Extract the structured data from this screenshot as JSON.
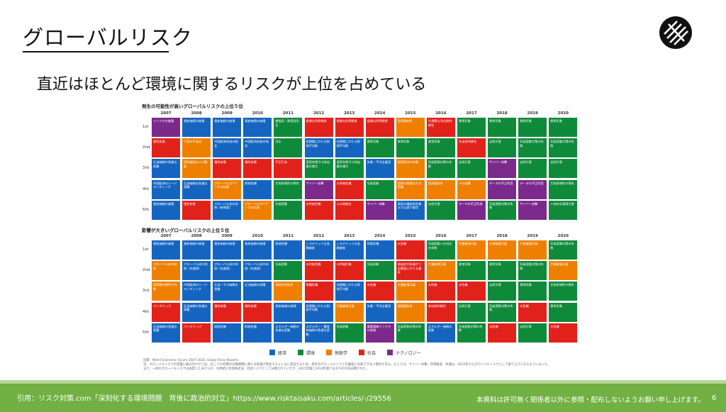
{
  "header": {
    "title": "グローバルリスク",
    "subtitle": "直近はほとんど環境に関するリスクが上位を占めている"
  },
  "colors": {
    "economic": "#1565c0",
    "environment": "#0f8a3a",
    "geopolitics": "#ee7f00",
    "society": "#e0221b",
    "technology": "#7b2a8c",
    "footer": "#72b043"
  },
  "years": [
    "2007",
    "2008",
    "2009",
    "2010",
    "2011",
    "2012",
    "2013",
    "2014",
    "2015",
    "2016",
    "2017",
    "2018",
    "2019",
    "2020"
  ],
  "ranks": [
    "1st",
    "2nd",
    "3rd",
    "4th",
    "5th"
  ],
  "likelihood": {
    "title": "発生の可能性が高いグローバルリスクの上位５位",
    "rows": [
      [
        {
          "t": "インフラの崩壊",
          "c": "technology"
        },
        {
          "t": "資産価格の崩壊",
          "c": "economic"
        },
        {
          "t": "資産価格の崩壊",
          "c": "economic"
        },
        {
          "t": "資産価格の崩壊",
          "c": "economic"
        },
        {
          "t": "暴風雨・熱帯低気圧",
          "c": "environment"
        },
        {
          "t": "極端な所得格差",
          "c": "society"
        },
        {
          "t": "極端な所得格差",
          "c": "society"
        },
        {
          "t": "極端な所得格差",
          "c": "society"
        },
        {
          "t": "国家間紛争",
          "c": "geopolitics"
        },
        {
          "t": "大規模な非自発的移住",
          "c": "society"
        },
        {
          "t": "異常気象",
          "c": "environment"
        },
        {
          "t": "異常気象",
          "c": "environment"
        },
        {
          "t": "異常気象",
          "c": "environment"
        },
        {
          "t": "異常気象",
          "c": "environment"
        }
      ],
      [
        {
          "t": "慢性疾患",
          "c": "society"
        },
        {
          "t": "中東の不安定",
          "c": "geopolitics"
        },
        {
          "t": "中国経済成長の鈍化",
          "c": "economic"
        },
        {
          "t": "中国経済成長の鈍化",
          "c": "economic"
        },
        {
          "t": "洪水",
          "c": "environment"
        },
        {
          "t": "長期間にわたる財政不均衡",
          "c": "economic"
        },
        {
          "t": "長期間にわたる財政不均衡",
          "c": "economic"
        },
        {
          "t": "異常気象",
          "c": "environment"
        },
        {
          "t": "異常気象",
          "c": "environment"
        },
        {
          "t": "異常気象",
          "c": "environment"
        },
        {
          "t": "非自発的移住",
          "c": "society"
        },
        {
          "t": "自然災害",
          "c": "environment"
        },
        {
          "t": "気候変動対策の失敗",
          "c": "environment"
        },
        {
          "t": "気候変動対策の失敗",
          "c": "environment"
        }
      ],
      [
        {
          "t": "石油価格の急激な高騰",
          "c": "economic"
        },
        {
          "t": "国家破綻および脆弱",
          "c": "geopolitics"
        },
        {
          "t": "慢性疾患",
          "c": "society"
        },
        {
          "t": "慢性疾患",
          "c": "society"
        },
        {
          "t": "不正行為",
          "c": "society"
        },
        {
          "t": "温室効果ガス排出量の増大",
          "c": "environment"
        },
        {
          "t": "温室効果ガス排出量の増大",
          "c": "environment"
        },
        {
          "t": "失業・不完全雇用",
          "c": "economic"
        },
        {
          "t": "国家統治の失敗",
          "c": "geopolitics"
        },
        {
          "t": "気候変動対策の失敗",
          "c": "environment"
        },
        {
          "t": "自然災害",
          "c": "environment"
        },
        {
          "t": "サイバー攻撃",
          "c": "technology"
        },
        {
          "t": "自然災害",
          "c": "environment"
        },
        {
          "t": "自然災害",
          "c": "environment"
        }
      ],
      [
        {
          "t": "中国経済のハードランディング",
          "c": "economic"
        },
        {
          "t": "石油価格の急激な高騰",
          "c": "economic"
        },
        {
          "t": "グローバルガバナンスの欠陥",
          "c": "geopolitics"
        },
        {
          "t": "財政危機",
          "c": "economic"
        },
        {
          "t": "生物多様性の喪失",
          "c": "environment"
        },
        {
          "t": "サイバー攻撃",
          "c": "technology"
        },
        {
          "t": "水供給危機",
          "c": "society"
        },
        {
          "t": "気候変動",
          "c": "environment"
        },
        {
          "t": "国家の崩壊または危機",
          "c": "geopolitics"
        },
        {
          "t": "国家間紛争",
          "c": "geopolitics"
        },
        {
          "t": "テロ攻撃",
          "c": "geopolitics"
        },
        {
          "t": "データの不正利用",
          "c": "technology"
        },
        {
          "t": "データの不正利用",
          "c": "technology"
        },
        {
          "t": "生物多様性の喪失",
          "c": "environment"
        }
      ],
      [
        {
          "t": "資産価格の崩壊",
          "c": "economic"
        },
        {
          "t": "慢性疾患",
          "c": "society"
        },
        {
          "t": "グローバル化の抑制（新興国）",
          "c": "economic"
        },
        {
          "t": "グローバルガバナンスの欠陥",
          "c": "geopolitics"
        },
        {
          "t": "気候変動",
          "c": "environment"
        },
        {
          "t": "水供給危機",
          "c": "society"
        },
        {
          "t": "人口高齢化",
          "c": "society"
        },
        {
          "t": "サイバー攻撃",
          "c": "technology"
        },
        {
          "t": "高度の構造的失業または過少雇用",
          "c": "economic"
        },
        {
          "t": "自然災害",
          "c": "environment"
        },
        {
          "t": "データの不正利用",
          "c": "technology"
        },
        {
          "t": "気候変動対策の失敗",
          "c": "environment"
        },
        {
          "t": "サイバー攻撃",
          "c": "technology"
        },
        {
          "t": "人為的な環境災害",
          "c": "environment"
        }
      ]
    ]
  },
  "impact": {
    "title": "影響が大きいグローバルリスクの上位５位",
    "rows": [
      [
        {
          "t": "資産価格の崩壊",
          "c": "economic"
        },
        {
          "t": "資産価格の崩壊",
          "c": "economic"
        },
        {
          "t": "資産価格の崩壊",
          "c": "economic"
        },
        {
          "t": "資産価格の崩壊",
          "c": "economic"
        },
        {
          "t": "財政危機",
          "c": "economic"
        },
        {
          "t": "システミックな金融破綻",
          "c": "economic"
        },
        {
          "t": "システミックな金融破綻",
          "c": "economic"
        },
        {
          "t": "財政危機",
          "c": "economic"
        },
        {
          "t": "水危機",
          "c": "society"
        },
        {
          "t": "気候変動への対応の失敗",
          "c": "environment"
        },
        {
          "t": "大量破壊兵器",
          "c": "geopolitics"
        },
        {
          "t": "大量破壊兵器",
          "c": "geopolitics"
        },
        {
          "t": "大量破壊兵器",
          "c": "geopolitics"
        },
        {
          "t": "気候変動対策の失敗",
          "c": "environment"
        }
      ],
      [
        {
          "t": "グローバル化の抑制",
          "c": "geopolitics"
        },
        {
          "t": "グローバル化の抑制（先進国）",
          "c": "economic"
        },
        {
          "t": "グローバル化の抑制（先進国）",
          "c": "economic"
        },
        {
          "t": "グローバル化の抑制（先進国）",
          "c": "economic"
        },
        {
          "t": "気候変動",
          "c": "environment"
        },
        {
          "t": "水供給危機",
          "c": "society"
        },
        {
          "t": "水供給危機",
          "c": "society"
        },
        {
          "t": "気候変動",
          "c": "environment"
        },
        {
          "t": "感染症の急速かつ広範囲にわたる蔓延",
          "c": "society"
        },
        {
          "t": "大量破壊兵器",
          "c": "geopolitics"
        },
        {
          "t": "異常気象",
          "c": "environment"
        },
        {
          "t": "異常気象",
          "c": "environment"
        },
        {
          "t": "気候変動対策の失敗",
          "c": "environment"
        },
        {
          "t": "大量破壊兵器",
          "c": "geopolitics"
        }
      ],
      [
        {
          "t": "国家間の戦争や内戦",
          "c": "geopolitics"
        },
        {
          "t": "中国経済のハードランディング",
          "c": "economic"
        },
        {
          "t": "石油・ガス価格の急騰",
          "c": "economic"
        },
        {
          "t": "石油価格の急騰",
          "c": "economic"
        },
        {
          "t": "地政学的紛争",
          "c": "geopolitics"
        },
        {
          "t": "食糧危機",
          "c": "society"
        },
        {
          "t": "長期間にわたる財政不均衡",
          "c": "economic"
        },
        {
          "t": "水危機",
          "c": "society"
        },
        {
          "t": "大量破壊兵器",
          "c": "geopolitics"
        },
        {
          "t": "水危機",
          "c": "society"
        },
        {
          "t": "水危機",
          "c": "society"
        },
        {
          "t": "自然災害",
          "c": "environment"
        },
        {
          "t": "異常気象",
          "c": "environment"
        },
        {
          "t": "生物多様性の喪失",
          "c": "environment"
        }
      ],
      [
        {
          "t": "パンデミック",
          "c": "society"
        },
        {
          "t": "石油価格の急激な高騰",
          "c": "economic"
        },
        {
          "t": "慢性疾患",
          "c": "society"
        },
        {
          "t": "慢性疾患",
          "c": "society"
        },
        {
          "t": "資産価格の崩壊",
          "c": "economic"
        },
        {
          "t": "長期間にわたる財政不均衡",
          "c": "economic"
        },
        {
          "t": "大量破壊兵器",
          "c": "geopolitics"
        },
        {
          "t": "失業・不完全雇用",
          "c": "economic"
        },
        {
          "t": "国家間紛争",
          "c": "geopolitics"
        },
        {
          "t": "非自発的移住",
          "c": "society"
        },
        {
          "t": "自然災害",
          "c": "environment"
        },
        {
          "t": "気候変動対策の失敗",
          "c": "environment"
        },
        {
          "t": "水危機",
          "c": "society"
        },
        {
          "t": "異常気象",
          "c": "environment"
        }
      ],
      [
        {
          "t": "石油価格の急激な高騰",
          "c": "economic"
        },
        {
          "t": "パンデミック",
          "c": "society"
        },
        {
          "t": "財政危機",
          "c": "economic"
        },
        {
          "t": "財政危機",
          "c": "economic"
        },
        {
          "t": "エネルギー価格の急激な変動",
          "c": "economic"
        },
        {
          "t": "エネルギー・農産物価格の急激な変動",
          "c": "economic"
        },
        {
          "t": "気候変動",
          "c": "environment"
        },
        {
          "t": "重要情報インフラの崩壊",
          "c": "technology"
        },
        {
          "t": "気候変動対策の失敗",
          "c": "environment"
        },
        {
          "t": "エネルギー価格の変動",
          "c": "economic"
        },
        {
          "t": "気候変動対策の失敗",
          "c": "environment"
        },
        {
          "t": "水危機",
          "c": "society"
        },
        {
          "t": "自然災害",
          "c": "environment"
        },
        {
          "t": "水危機",
          "c": "society"
        }
      ]
    ]
  },
  "legend": [
    {
      "label": "経済",
      "c": "economic"
    },
    {
      "label": "環境",
      "c": "environment"
    },
    {
      "label": "地政学",
      "c": "geopolitics"
    },
    {
      "label": "社会",
      "c": "society"
    },
    {
      "label": "テクノロジー",
      "c": "technology"
    }
  ],
  "notes": {
    "source": "出典：World Economic Forum 2007-2020, Global Risks Reports.",
    "note1": "注：グローバルリスクの定義に組み合わせては、向こう10年間の対象期間に新たな知識が発生するとともに変化するため、各年のグローバルリスクを厳密に比較できない場合がある。たとえば、サイバー攻撃、所得格差、失業は、2012年からグローバルリスクとして取り上げられるようになった。",
    "note2": "また、一部のグローバルリスクは再度した分けられ、水供給と所得格差は、社会リスクとして分類されていたが、2015年版と2014年版ではそれぞれ再分類された。"
  },
  "footer": {
    "citation": "引用：リスク対策.com「深刻化する環境問題　背後に政治的対立」https://www.risktaisaku.com/articles/-/29556",
    "notice": "本資料は許可無く関係者以外に参照・配布しないようお願い申し上げます。",
    "page": "6"
  }
}
